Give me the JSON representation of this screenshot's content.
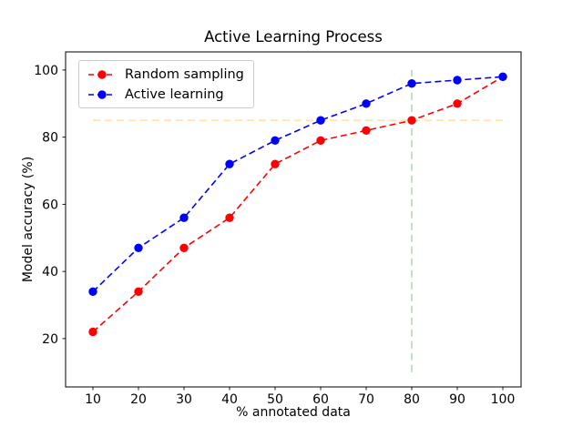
{
  "chart_data": {
    "type": "line",
    "title": "Active Learning Process",
    "xlabel": "% annotated data",
    "ylabel": "Model accuracy (%)",
    "x": [
      10,
      20,
      30,
      40,
      50,
      60,
      70,
      80,
      90,
      100
    ],
    "series": [
      {
        "name": "Random sampling",
        "color": "#ff0000",
        "linestyle": "dashed",
        "marker": "circle",
        "values": [
          22,
          34,
          47,
          56,
          72,
          79,
          82,
          85,
          90,
          98
        ]
      },
      {
        "name": "Active learning",
        "color": "#0000ff",
        "linestyle": "dashed",
        "marker": "circle",
        "values": [
          34,
          47,
          56,
          72,
          79,
          85,
          90,
          96,
          97,
          98
        ]
      }
    ],
    "reference_lines": [
      {
        "kind": "hline",
        "y": 85,
        "x1": 10,
        "x2": 100,
        "color": "#ffe3b0",
        "style": "dashed",
        "label": "target-accuracy-85"
      },
      {
        "kind": "vline",
        "x": 80,
        "y1": 10,
        "y2": 100,
        "color": "#b7dcb7",
        "style": "dashed",
        "label": "annotation-budget-80"
      }
    ],
    "xticks": [
      10,
      20,
      30,
      40,
      50,
      60,
      70,
      80,
      90,
      100
    ],
    "yticks": [
      20,
      40,
      60,
      80,
      100
    ],
    "xlim": [
      4,
      104
    ],
    "ylim": [
      5.6,
      105.4
    ],
    "grid": false,
    "legend_position": "upper-left",
    "axis_color": "#000000",
    "background_color": "#ffffff"
  }
}
